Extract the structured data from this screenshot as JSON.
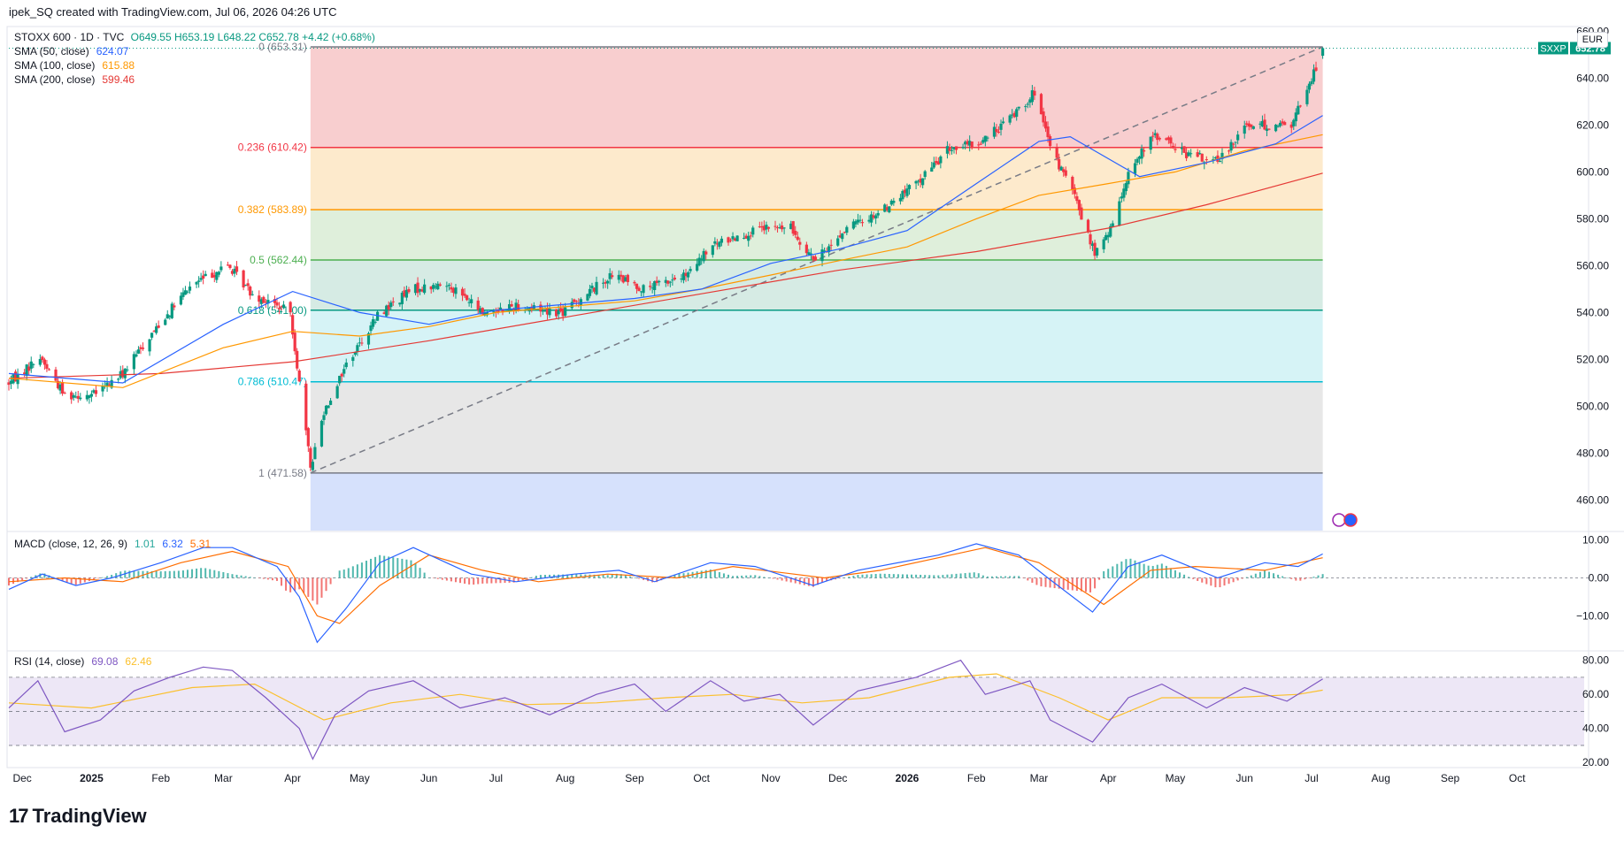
{
  "header": "ipek_SQ created with TradingView.com, Jul 06, 2026 04:26 UTC",
  "legend": {
    "symbol": "STOXX 600 · 1D · TVC",
    "ohlc": "O649.55 H653.19 L648.22 C652.78 +4.42 (+0.68%)",
    "sma50": {
      "label": "SMA (50, close)",
      "value": "624.07",
      "color": "#2962ff"
    },
    "sma100": {
      "label": "SMA (100, close)",
      "value": "615.88",
      "color": "#ff9800"
    },
    "sma200": {
      "label": "SMA (200, close)",
      "value": "599.46",
      "color": "#e53935"
    }
  },
  "currency": "EUR",
  "price_tag": {
    "symbol": "SXXP",
    "value": "652.78",
    "color": "#089981"
  },
  "brand": "TradingView",
  "brand_mark": "17",
  "chart_data": [
    {
      "type": "candlestick",
      "name": "STOXX 600 price pane",
      "y_axis": {
        "range": [
          447,
          662
        ],
        "ticks": [
          "460.00",
          "480.00",
          "500.00",
          "520.00",
          "540.00",
          "560.00",
          "580.00",
          "600.00",
          "620.00",
          "640.00",
          "660.00"
        ]
      },
      "x_axis": {
        "range": [
          "2024-11-25",
          "2026-10-31"
        ],
        "ticks": [
          "Dec",
          "2025",
          "Feb",
          "Mar",
          "Apr",
          "May",
          "Jun",
          "Jul",
          "Aug",
          "Sep",
          "Oct",
          "Nov",
          "Dec",
          "2026",
          "Feb",
          "Mar",
          "Apr",
          "May",
          "Jun",
          "Jul",
          "Aug",
          "Sep",
          "Oct"
        ],
        "tick_dates": [
          "2024-12-01",
          "2025-01-01",
          "2025-02-01",
          "2025-03-01",
          "2025-04-01",
          "2025-05-01",
          "2025-06-01",
          "2025-07-01",
          "2025-08-01",
          "2025-09-01",
          "2025-10-01",
          "2025-11-01",
          "2025-12-01",
          "2026-01-01",
          "2026-02-01",
          "2026-03-01",
          "2026-04-01",
          "2026-05-01",
          "2026-06-01",
          "2026-07-01",
          "2026-08-01",
          "2026-09-01",
          "2026-10-01"
        ]
      },
      "close_path": [
        [
          "2024-11-25",
          510
        ],
        [
          "2024-12-09",
          521
        ],
        [
          "2024-12-20",
          505
        ],
        [
          "2025-01-02",
          505
        ],
        [
          "2025-01-15",
          514
        ],
        [
          "2025-01-31",
          535
        ],
        [
          "2025-02-15",
          552
        ],
        [
          "2025-03-03",
          560
        ],
        [
          "2025-03-14",
          548
        ],
        [
          "2025-03-31",
          540
        ],
        [
          "2025-04-04",
          510
        ],
        [
          "2025-04-09",
          474
        ],
        [
          "2025-04-15",
          498
        ],
        [
          "2025-04-25",
          518
        ],
        [
          "2025-05-10",
          540
        ],
        [
          "2025-05-25",
          550
        ],
        [
          "2025-06-10",
          552
        ],
        [
          "2025-06-25",
          540
        ],
        [
          "2025-07-10",
          543
        ],
        [
          "2025-07-31",
          540
        ],
        [
          "2025-08-10",
          548
        ],
        [
          "2025-08-22",
          556
        ],
        [
          "2025-09-05",
          550
        ],
        [
          "2025-09-25",
          556
        ],
        [
          "2025-10-05",
          568
        ],
        [
          "2025-10-15",
          572
        ],
        [
          "2025-10-31",
          576
        ],
        [
          "2025-11-10",
          576
        ],
        [
          "2025-11-21",
          562
        ],
        [
          "2025-12-05",
          576
        ],
        [
          "2025-12-20",
          583
        ],
        [
          "2026-01-05",
          595
        ],
        [
          "2026-01-20",
          610
        ],
        [
          "2026-02-02",
          612
        ],
        [
          "2026-02-15",
          622
        ],
        [
          "2026-02-27",
          634
        ],
        [
          "2026-03-06",
          610
        ],
        [
          "2026-03-16",
          592
        ],
        [
          "2026-03-26",
          565
        ],
        [
          "2026-04-02",
          575
        ],
        [
          "2026-04-10",
          600
        ],
        [
          "2026-04-22",
          616
        ],
        [
          "2026-05-05",
          608
        ],
        [
          "2026-05-20",
          604
        ],
        [
          "2026-06-01",
          620
        ],
        [
          "2026-06-12",
          620
        ],
        [
          "2026-06-22",
          620
        ],
        [
          "2026-07-01",
          640
        ],
        [
          "2026-07-06",
          652.78
        ]
      ],
      "last": {
        "open": 649.55,
        "high": 653.19,
        "low": 648.22,
        "close": 652.78
      },
      "sma50_path": [
        [
          "2024-11-25",
          514
        ],
        [
          "2025-01-15",
          510
        ],
        [
          "2025-03-01",
          535
        ],
        [
          "2025-04-01",
          549
        ],
        [
          "2025-05-01",
          540
        ],
        [
          "2025-06-01",
          535
        ],
        [
          "2025-07-01",
          541
        ],
        [
          "2025-09-01",
          546
        ],
        [
          "2025-10-01",
          550
        ],
        [
          "2025-11-01",
          561
        ],
        [
          "2025-12-01",
          567
        ],
        [
          "2026-01-01",
          575
        ],
        [
          "2026-02-01",
          595
        ],
        [
          "2026-03-01",
          613
        ],
        [
          "2026-03-15",
          615
        ],
        [
          "2026-04-15",
          598
        ],
        [
          "2026-05-15",
          604
        ],
        [
          "2026-06-15",
          612
        ],
        [
          "2026-07-06",
          624.07
        ]
      ],
      "sma100_path": [
        [
          "2024-11-25",
          512
        ],
        [
          "2025-01-15",
          508
        ],
        [
          "2025-03-01",
          525
        ],
        [
          "2025-04-01",
          532
        ],
        [
          "2025-05-01",
          530
        ],
        [
          "2025-06-01",
          534
        ],
        [
          "2025-07-01",
          540
        ],
        [
          "2025-09-01",
          545
        ],
        [
          "2025-10-01",
          550
        ],
        [
          "2025-11-01",
          556
        ],
        [
          "2025-12-01",
          562
        ],
        [
          "2026-01-01",
          568
        ],
        [
          "2026-02-01",
          580
        ],
        [
          "2026-03-01",
          590
        ],
        [
          "2026-04-01",
          595
        ],
        [
          "2026-05-01",
          600
        ],
        [
          "2026-06-01",
          609
        ],
        [
          "2026-07-06",
          615.88
        ]
      ],
      "sma200_path": [
        [
          "2024-11-25",
          512
        ],
        [
          "2025-02-01",
          514
        ],
        [
          "2025-04-01",
          519
        ],
        [
          "2025-06-01",
          528
        ],
        [
          "2025-08-01",
          538
        ],
        [
          "2025-10-01",
          548
        ],
        [
          "2025-12-01",
          558
        ],
        [
          "2026-02-01",
          566
        ],
        [
          "2026-04-01",
          576
        ],
        [
          "2026-05-15",
          586
        ],
        [
          "2026-07-06",
          599.46
        ]
      ],
      "fibonacci": {
        "range_dates": [
          "2025-04-09",
          "2026-07-06"
        ],
        "levels": [
          {
            "ratio": 0,
            "price": 653.31,
            "label": "0 (653.31)",
            "line": "#787b86",
            "fill": "#f7c5c7"
          },
          {
            "ratio": 0.236,
            "price": 610.42,
            "label": "0.236 (610.42)",
            "line": "#f23645",
            "fill": "#fde6c3"
          },
          {
            "ratio": 0.382,
            "price": 583.89,
            "label": "0.382 (583.89)",
            "line": "#ff9800",
            "fill": "#d9ecd5"
          },
          {
            "ratio": 0.5,
            "price": 562.44,
            "label": "0.5 (562.44)",
            "line": "#4caf50",
            "fill": "#cfe7df"
          },
          {
            "ratio": 0.618,
            "price": 541.0,
            "label": "0.618 (541.00)",
            "line": "#089981",
            "fill": "#cff1f4"
          },
          {
            "ratio": 0.786,
            "price": 510.47,
            "label": "0.786 (510.47)",
            "line": "#00bcd4",
            "fill": "#e3e3e3"
          },
          {
            "ratio": 1,
            "price": 471.58,
            "label": "1 (471.58)",
            "line": "#787b86",
            "fill": "#cfdcfb"
          }
        ],
        "trend_line": [
          [
            "2025-04-09",
            471.58
          ],
          [
            "2026-07-06",
            653.31
          ]
        ]
      }
    },
    {
      "type": "macd",
      "legend_label": "MACD (close, 12, 26, 9)",
      "values": {
        "histogram": "1.01",
        "macd": "6.32",
        "signal": "5.31"
      },
      "colors": {
        "macd": "#2962ff",
        "signal": "#ff6d00",
        "hist_up": "#26a69a",
        "hist_down": "#ef5350"
      },
      "y_axis": {
        "range": [
          -19,
          12
        ],
        "ticks": [
          "10.00",
          "0.00",
          "−10.00"
        ],
        "tick_values": [
          10,
          0,
          -10
        ]
      },
      "macd_path": [
        [
          "2024-11-25",
          -3
        ],
        [
          "2024-12-10",
          1
        ],
        [
          "2024-12-25",
          -2
        ],
        [
          "2025-01-10",
          0
        ],
        [
          "2025-02-01",
          4
        ],
        [
          "2025-02-20",
          8
        ],
        [
          "2025-03-05",
          8
        ],
        [
          "2025-03-25",
          3
        ],
        [
          "2025-04-04",
          -5
        ],
        [
          "2025-04-12",
          -17
        ],
        [
          "2025-04-25",
          -8
        ],
        [
          "2025-05-10",
          4
        ],
        [
          "2025-05-25",
          8
        ],
        [
          "2025-06-20",
          1
        ],
        [
          "2025-07-10",
          -1
        ],
        [
          "2025-08-05",
          1
        ],
        [
          "2025-08-25",
          2
        ],
        [
          "2025-09-10",
          -1
        ],
        [
          "2025-10-05",
          4
        ],
        [
          "2025-10-25",
          3
        ],
        [
          "2025-11-20",
          -2
        ],
        [
          "2025-12-10",
          2
        ],
        [
          "2026-01-15",
          6
        ],
        [
          "2026-02-01",
          9
        ],
        [
          "2026-02-20",
          6
        ],
        [
          "2026-03-05",
          0
        ],
        [
          "2026-03-25",
          -9
        ],
        [
          "2026-04-10",
          3
        ],
        [
          "2026-04-25",
          6
        ],
        [
          "2026-05-20",
          0
        ],
        [
          "2026-06-10",
          4
        ],
        [
          "2026-06-25",
          3
        ],
        [
          "2026-07-06",
          6.32
        ]
      ],
      "signal_path": [
        [
          "2024-11-25",
          -1
        ],
        [
          "2024-12-20",
          0
        ],
        [
          "2025-01-15",
          -1
        ],
        [
          "2025-02-10",
          4
        ],
        [
          "2025-03-05",
          7
        ],
        [
          "2025-03-30",
          3
        ],
        [
          "2025-04-12",
          -10
        ],
        [
          "2025-04-22",
          -12
        ],
        [
          "2025-05-10",
          -2
        ],
        [
          "2025-06-01",
          6
        ],
        [
          "2025-06-25",
          2
        ],
        [
          "2025-07-20",
          -1
        ],
        [
          "2025-08-20",
          1
        ],
        [
          "2025-09-20",
          0
        ],
        [
          "2025-10-15",
          3
        ],
        [
          "2025-11-25",
          0
        ],
        [
          "2025-12-20",
          2
        ],
        [
          "2026-02-05",
          8
        ],
        [
          "2026-03-01",
          4
        ],
        [
          "2026-03-30",
          -7
        ],
        [
          "2026-04-20",
          2
        ],
        [
          "2026-05-10",
          3
        ],
        [
          "2026-06-10",
          2
        ],
        [
          "2026-07-06",
          5.31
        ]
      ]
    },
    {
      "type": "rsi",
      "legend_label": "RSI (14, close)",
      "values": {
        "rsi": "69.08",
        "ma": "62.46"
      },
      "colors": {
        "rsi": "#7e57c2",
        "ma": "#fbc02d",
        "band": "#ede7f6"
      },
      "y_axis": {
        "range": [
          17,
          85
        ],
        "ticks": [
          "80.00",
          "60.00",
          "40.00",
          "20.00"
        ],
        "tick_values": [
          80,
          60,
          40,
          20
        ],
        "bands": [
          30,
          50,
          70
        ]
      },
      "rsi_path": [
        [
          "2024-11-25",
          52
        ],
        [
          "2024-12-08",
          68
        ],
        [
          "2024-12-20",
          38
        ],
        [
          "2025-01-05",
          45
        ],
        [
          "2025-01-20",
          62
        ],
        [
          "2025-02-05",
          70
        ],
        [
          "2025-02-20",
          76
        ],
        [
          "2025-03-05",
          74
        ],
        [
          "2025-03-20",
          58
        ],
        [
          "2025-04-04",
          40
        ],
        [
          "2025-04-10",
          22
        ],
        [
          "2025-04-20",
          48
        ],
        [
          "2025-05-05",
          62
        ],
        [
          "2025-05-25",
          68
        ],
        [
          "2025-06-15",
          52
        ],
        [
          "2025-07-05",
          58
        ],
        [
          "2025-07-25",
          48
        ],
        [
          "2025-08-15",
          60
        ],
        [
          "2025-09-01",
          66
        ],
        [
          "2025-09-15",
          50
        ],
        [
          "2025-10-05",
          68
        ],
        [
          "2025-10-20",
          56
        ],
        [
          "2025-11-05",
          60
        ],
        [
          "2025-11-20",
          42
        ],
        [
          "2025-12-10",
          62
        ],
        [
          "2026-01-05",
          70
        ],
        [
          "2026-01-25",
          80
        ],
        [
          "2026-02-05",
          60
        ],
        [
          "2026-02-25",
          68
        ],
        [
          "2026-03-06",
          45
        ],
        [
          "2026-03-25",
          32
        ],
        [
          "2026-04-10",
          58
        ],
        [
          "2026-04-25",
          66
        ],
        [
          "2026-05-15",
          52
        ],
        [
          "2026-06-01",
          64
        ],
        [
          "2026-06-20",
          56
        ],
        [
          "2026-07-06",
          69.08
        ]
      ],
      "ma_path": [
        [
          "2024-11-25",
          55
        ],
        [
          "2025-01-01",
          52
        ],
        [
          "2025-02-15",
          64
        ],
        [
          "2025-03-15",
          66
        ],
        [
          "2025-04-15",
          45
        ],
        [
          "2025-05-15",
          55
        ],
        [
          "2025-06-15",
          60
        ],
        [
          "2025-07-15",
          54
        ],
        [
          "2025-08-15",
          55
        ],
        [
          "2025-09-15",
          58
        ],
        [
          "2025-10-15",
          60
        ],
        [
          "2025-11-15",
          55
        ],
        [
          "2025-12-15",
          58
        ],
        [
          "2026-01-20",
          70
        ],
        [
          "2026-02-10",
          72
        ],
        [
          "2026-03-10",
          58
        ],
        [
          "2026-04-01",
          45
        ],
        [
          "2026-04-25",
          58
        ],
        [
          "2026-05-25",
          58
        ],
        [
          "2026-06-25",
          60
        ],
        [
          "2026-07-06",
          62.46
        ]
      ]
    }
  ]
}
